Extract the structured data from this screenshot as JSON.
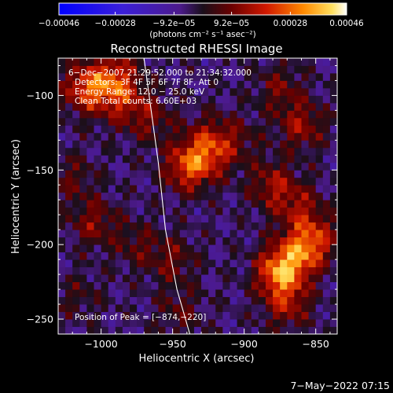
{
  "chart_data": {
    "type": "heatmap",
    "title": "Reconstructed RHESSI Image",
    "xlabel": "Heliocentric X (arcsec)",
    "ylabel": "Heliocentric Y (arcsec)",
    "xlim": [
      -1030,
      -835
    ],
    "ylim": [
      -260,
      -75
    ],
    "xticks": [
      -1000,
      -950,
      -900,
      -850
    ],
    "yticks": [
      -250,
      -200,
      -150,
      -100
    ],
    "xtick_labels": [
      "−1000",
      "−950",
      "−900",
      "−850"
    ],
    "ytick_labels": [
      "−250",
      "−200",
      "−150",
      "−100"
    ],
    "colorbar": {
      "range": [
        -0.00046,
        0.00046
      ],
      "ticks": [
        -0.00046,
        -0.00028,
        -9.2e-05,
        9.2e-05,
        0.00028,
        0.00046
      ],
      "tick_labels": [
        "−0.00046",
        "−0.00028",
        "−9.2e−05",
        "9.2e−05",
        "0.00028",
        "0.00046"
      ],
      "units": "(photons cm⁻² s⁻¹ asec⁻²)"
    },
    "annotations": [
      "6−Dec−2007 21:29:52.000 to 21:34:32.000",
      "Detectors: 3F 4F 5F 6F 7F 8F, Att 0",
      "Energy Range: 12.0 − 25.0 keV",
      "Clean    Total counts: 6.60E+03"
    ],
    "peak_label": "Position of Peak = [−874,−220]",
    "peak": [
      -874,
      -220
    ],
    "bright_regions": [
      {
        "x": -1010,
        "y": -95,
        "level": 0.55
      },
      {
        "x": -990,
        "y": -88,
        "level": 0.45
      },
      {
        "x": -985,
        "y": -105,
        "level": 0.3
      },
      {
        "x": -965,
        "y": -115,
        "level": 0.25
      },
      {
        "x": -925,
        "y": -128,
        "level": 0.22
      },
      {
        "x": -940,
        "y": -148,
        "level": 0.5
      },
      {
        "x": -925,
        "y": -140,
        "level": 0.35
      },
      {
        "x": -905,
        "y": -130,
        "level": 0.2
      },
      {
        "x": -1020,
        "y": -155,
        "level": 0.2
      },
      {
        "x": -1005,
        "y": -185,
        "level": 0.3
      },
      {
        "x": -975,
        "y": -200,
        "level": 0.2
      },
      {
        "x": -950,
        "y": -210,
        "level": 0.25
      },
      {
        "x": -875,
        "y": -95,
        "level": 0.25
      },
      {
        "x": -860,
        "y": -120,
        "level": 0.35
      },
      {
        "x": -880,
        "y": -160,
        "level": 0.35
      },
      {
        "x": -862,
        "y": -175,
        "level": 0.3
      },
      {
        "x": -875,
        "y": -218,
        "level": 0.7
      },
      {
        "x": -860,
        "y": -205,
        "level": 0.45
      },
      {
        "x": -850,
        "y": -195,
        "level": 0.35
      },
      {
        "x": -870,
        "y": -240,
        "level": 0.35
      },
      {
        "x": -945,
        "y": -245,
        "level": 0.2
      },
      {
        "x": -1015,
        "y": -235,
        "level": 0.15
      }
    ],
    "limb_curve": [
      [
        -970,
        -75
      ],
      [
        -960,
        -145
      ],
      [
        -955,
        -190
      ],
      [
        -947,
        -230
      ],
      [
        -938,
        -260
      ]
    ]
  },
  "timestamp": "7−May−2022 07:15"
}
